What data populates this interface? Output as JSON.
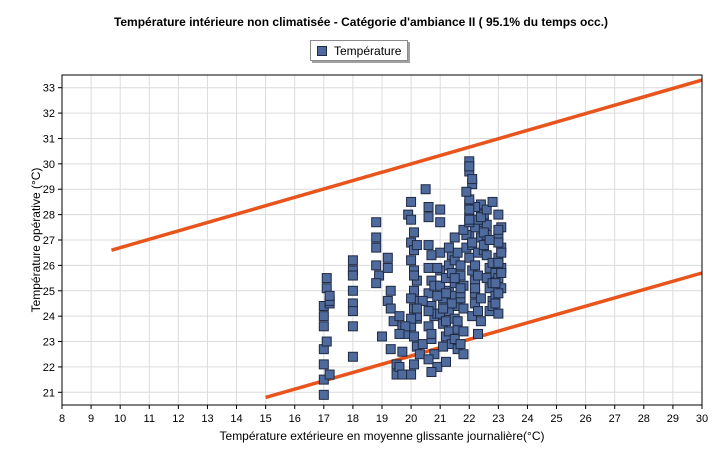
{
  "chart_data": {
    "type": "scatter",
    "title": "Température intérieure non climatisée  - Catégorie d'ambiance II ( 95.1% du temps occ.)",
    "xlabel": "Température extérieure en moyenne glissante journalière(°C)",
    "ylabel": "Température opérative (°C)",
    "xlim": [
      8,
      30
    ],
    "ylim": [
      20.5,
      33.5
    ],
    "xticks": [
      8,
      9,
      10,
      11,
      12,
      13,
      14,
      15,
      16,
      17,
      18,
      19,
      20,
      21,
      22,
      23,
      24,
      25,
      26,
      27,
      28,
      29,
      30
    ],
    "yticks": [
      21,
      22,
      23,
      24,
      25,
      26,
      27,
      28,
      29,
      30,
      31,
      32,
      33
    ],
    "grid": true,
    "legend_position": "top-center",
    "colors": {
      "marker": "#4f6a9c",
      "marker_edge": "#1f2a44",
      "limit_line": "#e8541c",
      "grid": "#dcdcdc"
    },
    "series": [
      {
        "name": "Température",
        "x": [
          17.0,
          17.0,
          17.0,
          17.1,
          17.1,
          17.0,
          17.2,
          17.0,
          17.0,
          17.2,
          17.0,
          17.1,
          17.2,
          17.2,
          18.0,
          18.0,
          18.0,
          18.0,
          18.0,
          18.0,
          18.0,
          18.0,
          18.8,
          18.8,
          18.8,
          18.8,
          18.9,
          18.8,
          19.0,
          19.2,
          19.2,
          19.3,
          19.2,
          19.3,
          19.4,
          19.3,
          19.5,
          19.5,
          19.6,
          19.7,
          19.8,
          19.7,
          19.6,
          19.7,
          19.9,
          20.0,
          20.0,
          20.1,
          20.0,
          20.1,
          20.0,
          20.1,
          20.2,
          20.1,
          20.0,
          20.1,
          20.2,
          20.0,
          20.1,
          20.2,
          20.3,
          20.1,
          20.0,
          20.2,
          20.1,
          20.3,
          20.2,
          20.4,
          20.5,
          20.6,
          20.6,
          20.6,
          20.6,
          20.7,
          20.6,
          20.7,
          20.8,
          20.6,
          20.7,
          20.8,
          20.9,
          20.7,
          20.8,
          20.9,
          20.6,
          20.7,
          21.0,
          21.0,
          21.0,
          21.0,
          21.0,
          21.1,
          21.0,
          21.1,
          21.2,
          21.1,
          21.2,
          21.3,
          21.2,
          21.3,
          21.4,
          21.3,
          21.2,
          21.4,
          21.3,
          21.4,
          21.5,
          21.4,
          21.5,
          21.5,
          21.6,
          21.5,
          21.6,
          21.5,
          21.6,
          21.7,
          21.7,
          21.8,
          21.7,
          21.8,
          21.6,
          21.8,
          21.7,
          21.6,
          21.8,
          21.7,
          21.9,
          22.0,
          22.0,
          22.1,
          22.0,
          22.0,
          22.0,
          22.1,
          22.0,
          22.1,
          22.2,
          22.2,
          22.2,
          22.1,
          22.3,
          22.2,
          22.3,
          22.2,
          22.4,
          22.3,
          22.4,
          22.3,
          22.2,
          22.4,
          22.5,
          22.4,
          22.5,
          22.6,
          22.5,
          22.6,
          22.7,
          22.6,
          22.7,
          22.8,
          22.7,
          22.8,
          22.9,
          22.8,
          22.9,
          22.8,
          23.0,
          23.1,
          23.0,
          23.1,
          23.0,
          23.1,
          23.0,
          23.1,
          23.0,
          23.1,
          23.0,
          23.1,
          22.9,
          23.0,
          22.9,
          23.0,
          22.4,
          22.5,
          22.6,
          22.3,
          22.5,
          22.7,
          22.2,
          22.4,
          21.9,
          22.1,
          21.5,
          21.7,
          21.2,
          21.4,
          20.9,
          21.1,
          20.6,
          20.4,
          20.2,
          20.0,
          19.8,
          19.6,
          20.7,
          20.9,
          21.3,
          21.5,
          21.8,
          22.0,
          22.6,
          22.8,
          23.0,
          22.0,
          22.0,
          22.0,
          22.0,
          22.1,
          21.9
        ],
        "y": [
          24.4,
          24.0,
          23.6,
          25.5,
          25.1,
          22.7,
          24.5,
          22.1,
          21.5,
          21.7,
          20.9,
          23.0,
          24.6,
          24.8,
          26.2,
          25.8,
          25.6,
          25.0,
          24.5,
          24.2,
          23.6,
          22.4,
          27.7,
          27.1,
          26.7,
          26.0,
          25.6,
          25.3,
          23.2,
          26.3,
          25.9,
          25.0,
          24.6,
          24.3,
          23.8,
          22.7,
          22.1,
          21.7,
          24.0,
          23.6,
          23.3,
          22.6,
          22.0,
          21.7,
          28.0,
          28.5,
          27.8,
          27.3,
          26.9,
          26.6,
          26.2,
          25.8,
          25.4,
          25.0,
          24.7,
          24.3,
          23.9,
          23.6,
          23.2,
          22.8,
          22.5,
          22.1,
          21.7,
          26.8,
          25.6,
          24.6,
          24.0,
          22.9,
          29.0,
          28.3,
          27.9,
          26.8,
          25.9,
          25.4,
          24.9,
          24.4,
          24.0,
          23.6,
          23.1,
          22.5,
          22.0,
          21.8,
          25.2,
          24.1,
          22.3,
          23.3,
          28.2,
          27.7,
          26.5,
          25.8,
          25.2,
          24.7,
          24.1,
          23.7,
          23.2,
          22.8,
          22.2,
          26.0,
          25.5,
          25.0,
          24.6,
          24.2,
          23.8,
          26.4,
          23.4,
          22.9,
          26.2,
          25.7,
          25.3,
          24.8,
          24.4,
          23.9,
          23.5,
          23.1,
          22.7,
          26.0,
          25.6,
          25.2,
          24.7,
          24.3,
          23.8,
          23.4,
          22.9,
          26.5,
          22.5,
          24.9,
          26.7,
          30.1,
          29.7,
          29.2,
          28.4,
          27.9,
          27.2,
          26.8,
          26.3,
          25.8,
          25.4,
          24.9,
          24.5,
          24.0,
          26.5,
          26.0,
          25.6,
          25.1,
          24.7,
          24.2,
          23.8,
          23.3,
          27.5,
          27.1,
          26.6,
          28.0,
          27.7,
          27.2,
          26.8,
          26.4,
          25.9,
          25.5,
          25.1,
          24.6,
          24.2,
          26.1,
          25.7,
          25.3,
          24.8,
          24.4,
          28.0,
          27.5,
          27.1,
          26.7,
          26.3,
          25.9,
          25.5,
          25.1,
          26.9,
          26.5,
          26.1,
          25.7,
          25.3,
          24.9,
          24.5,
          24.1,
          28.4,
          28.0,
          27.6,
          27.8,
          27.3,
          27.0,
          28.3,
          27.9,
          27.2,
          26.9,
          25.5,
          25.1,
          24.9,
          24.5,
          24.8,
          24.3,
          24.2,
          24.6,
          24.3,
          23.9,
          23.6,
          23.3,
          26.4,
          25.9,
          26.7,
          27.1,
          27.4,
          27.7,
          28.2,
          28.5,
          27.4,
          28.6,
          28.2,
          27.8,
          29.9,
          29.4,
          28.9
        ]
      }
    ],
    "limit_lines": [
      {
        "x": [
          9.7,
          30
        ],
        "y": [
          26.6,
          33.3
        ]
      },
      {
        "x": [
          15,
          30
        ],
        "y": [
          20.8,
          25.7
        ]
      }
    ]
  }
}
